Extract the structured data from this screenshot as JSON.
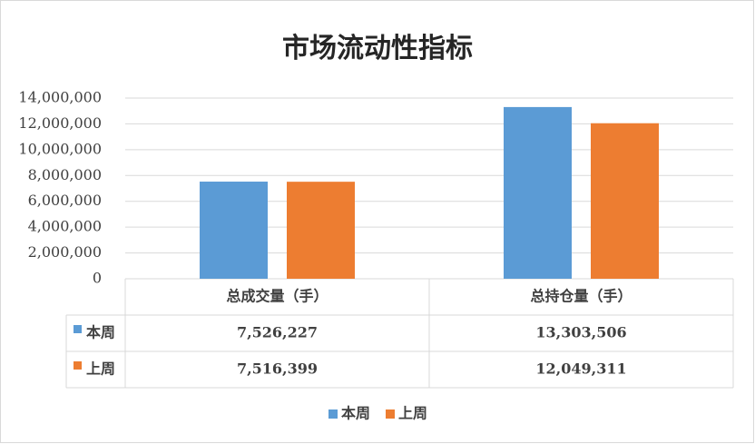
{
  "chart_data": {
    "type": "bar",
    "title": "市场流动性指标",
    "categories": [
      "总成交量（手）",
      "总持仓量（手）"
    ],
    "series": [
      {
        "name": "本周",
        "color": "#5b9bd5",
        "values": [
          7526227,
          13303506
        ],
        "value_labels": [
          "7,526,227",
          "13,303,506"
        ]
      },
      {
        "name": "上周",
        "color": "#ed7d31",
        "values": [
          7516399,
          12049311
        ],
        "value_labels": [
          "7,516,399",
          "12,049,311"
        ]
      }
    ],
    "ylim": [
      0,
      14000000
    ],
    "yticks": [
      0,
      {
        "value": 2000000,
        "label": "2,000,000"
      },
      {
        "value": 4000000,
        "label": "4,000,000"
      },
      {
        "value": 6000000,
        "label": "6,000,000"
      },
      {
        "value": 8000000,
        "label": "8,000,000"
      },
      {
        "value": 10000000,
        "label": "10,000,000"
      },
      {
        "value": 12000000,
        "label": "12,000,000"
      },
      {
        "value": 14000000,
        "label": "14,000,000"
      }
    ],
    "grid": true
  }
}
